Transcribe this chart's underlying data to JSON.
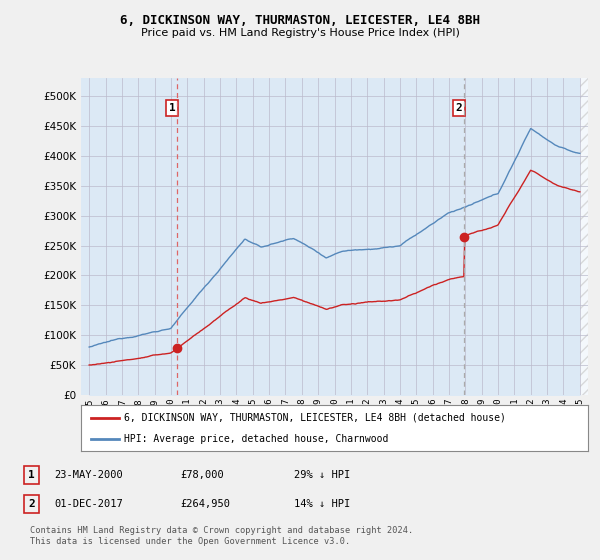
{
  "title_line1": "6, DICKINSON WAY, THURMASTON, LEICESTER, LE4 8BH",
  "title_line2": "Price paid vs. HM Land Registry's House Price Index (HPI)",
  "legend_red": "6, DICKINSON WAY, THURMASTON, LEICESTER, LE4 8BH (detached house)",
  "legend_blue": "HPI: Average price, detached house, Charnwood",
  "footnote": "Contains HM Land Registry data © Crown copyright and database right 2024.\nThis data is licensed under the Open Government Licence v3.0.",
  "transaction1_label": "1",
  "transaction1_date": "23-MAY-2000",
  "transaction1_price": "£78,000",
  "transaction1_hpi": "29% ↓ HPI",
  "transaction2_label": "2",
  "transaction2_date": "01-DEC-2017",
  "transaction2_price": "£264,950",
  "transaction2_hpi": "14% ↓ HPI",
  "marker1_x": 2000.38,
  "marker1_y": 78000,
  "marker2_x": 2017.92,
  "marker2_y": 264950,
  "vline1_x": 2000.38,
  "vline2_x": 2017.92,
  "ylim_min": 0,
  "ylim_max": 530000,
  "xlim_min": 1994.5,
  "xlim_max": 2025.5,
  "yticks": [
    0,
    50000,
    100000,
    150000,
    200000,
    250000,
    300000,
    350000,
    400000,
    450000,
    500000
  ],
  "xtick_years": [
    1995,
    1996,
    1997,
    1998,
    1999,
    2000,
    2001,
    2002,
    2003,
    2004,
    2005,
    2006,
    2007,
    2008,
    2009,
    2010,
    2011,
    2012,
    2013,
    2014,
    2015,
    2016,
    2017,
    2018,
    2019,
    2020,
    2021,
    2022,
    2023,
    2024,
    2025
  ],
  "bg_color": "#f0f0f0",
  "plot_bg_color": "#dce9f5",
  "fill_color": "#dce9f5",
  "red_color": "#cc2222",
  "blue_color": "#5588bb",
  "grid_color": "#bbbbcc",
  "vline1_color": "#dd6666",
  "vline2_color": "#aaaaaa"
}
